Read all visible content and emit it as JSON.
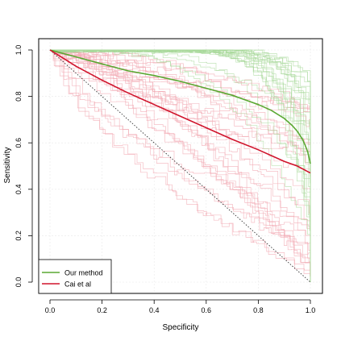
{
  "chart_data": {
    "type": "line",
    "title": "",
    "xlabel": "Specificity",
    "ylabel": "Sensitivity",
    "xlim": [
      0,
      1
    ],
    "ylim": [
      0,
      1
    ],
    "x_ticks": [
      0.0,
      0.2,
      0.4,
      0.6,
      0.8,
      1.0
    ],
    "y_ticks": [
      0.0,
      0.2,
      0.4,
      0.6,
      0.8,
      1.0
    ],
    "x_tick_labels": [
      "0.0",
      "0.2",
      "0.4",
      "0.6",
      "0.8",
      "1.0"
    ],
    "y_tick_labels": [
      "0.0",
      "0.2",
      "0.4",
      "0.6",
      "0.8",
      "1.0"
    ],
    "grid": true,
    "legend_position": "bottom-left",
    "colors": {
      "green": "#5aa832",
      "red": "#d0142c",
      "green_faint": "#a8d89a",
      "red_faint": "#f2a9b3",
      "diagonal": "#333333",
      "grid": "#e8e8e8"
    },
    "series": [
      {
        "name": "Our method",
        "color": "#5aa832",
        "x": [
          0.0,
          0.05,
          0.1,
          0.2,
          0.3,
          0.4,
          0.5,
          0.6,
          0.7,
          0.8,
          0.85,
          0.9,
          0.93,
          0.95,
          0.97,
          0.98,
          0.99,
          1.0
        ],
        "y": [
          1.0,
          0.985,
          0.97,
          0.94,
          0.91,
          0.89,
          0.865,
          0.835,
          0.805,
          0.765,
          0.74,
          0.705,
          0.675,
          0.65,
          0.615,
          0.59,
          0.56,
          0.51
        ]
      },
      {
        "name": "Cai et al",
        "color": "#d0142c",
        "x": [
          0.0,
          0.05,
          0.1,
          0.2,
          0.3,
          0.4,
          0.5,
          0.6,
          0.7,
          0.8,
          0.9,
          0.95,
          1.0
        ],
        "y": [
          1.0,
          0.965,
          0.93,
          0.87,
          0.815,
          0.765,
          0.715,
          0.665,
          0.615,
          0.57,
          0.52,
          0.5,
          0.47
        ]
      }
    ],
    "reference_line": {
      "x": [
        0.0,
        1.0
      ],
      "y": [
        1.0,
        0.0
      ]
    }
  }
}
